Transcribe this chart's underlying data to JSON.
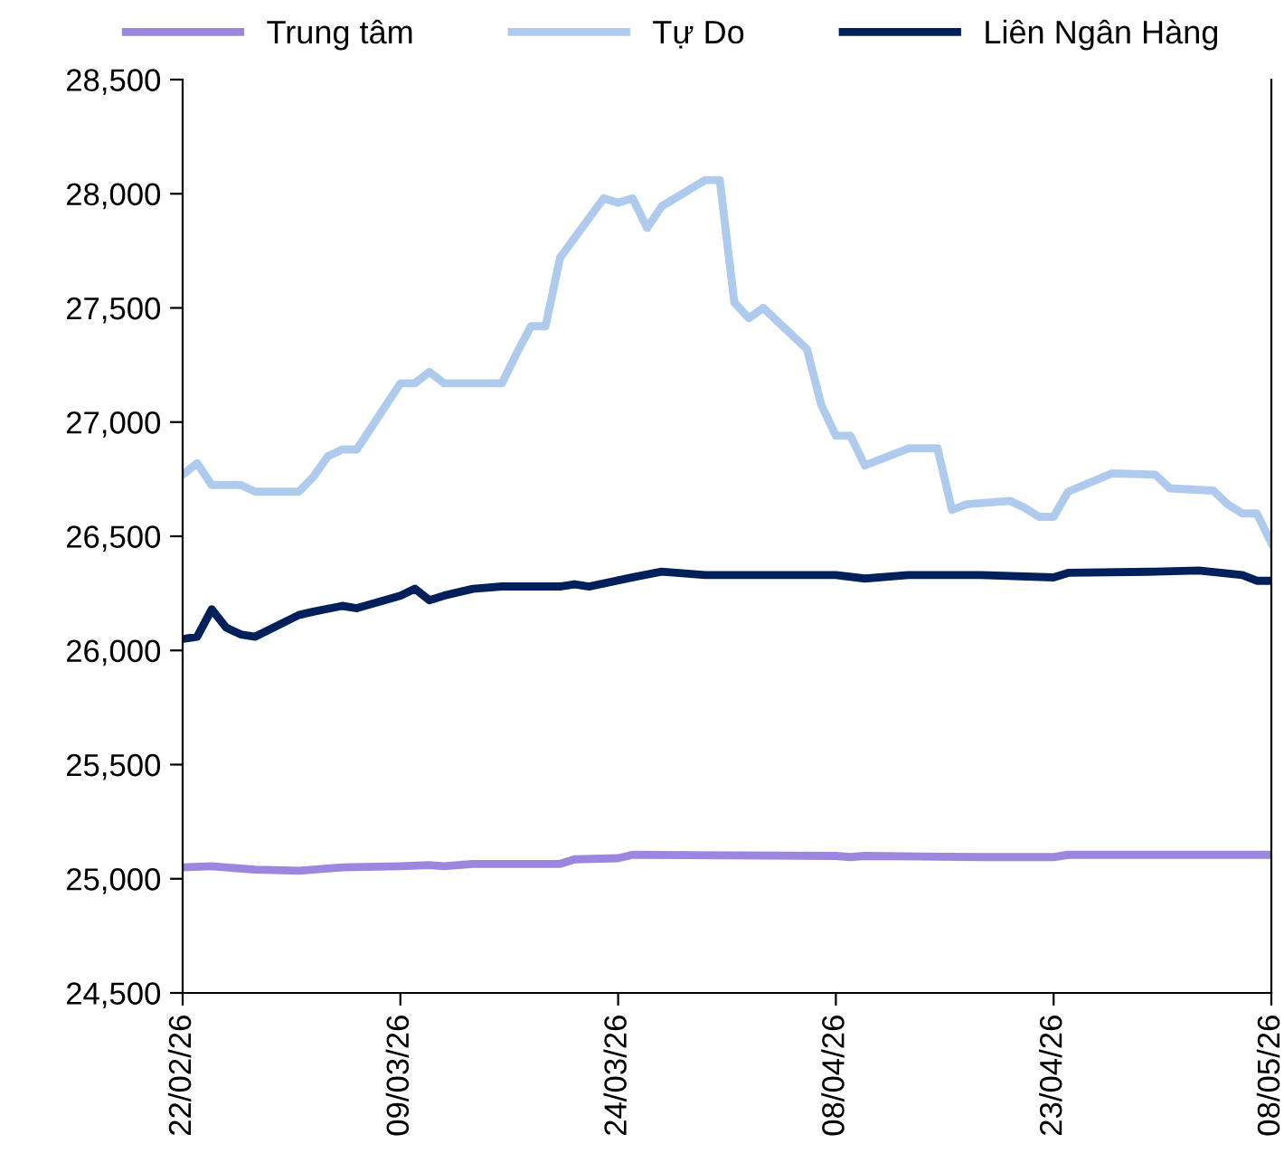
{
  "chart_data": {
    "type": "line",
    "legend": "top",
    "grid": false,
    "marker": "none",
    "line_style": "solid",
    "ylim": [
      24500,
      28500
    ],
    "yticks": [
      {
        "value": 24500,
        "label": "24,500"
      },
      {
        "value": 25000,
        "label": "25,000"
      },
      {
        "value": 25500,
        "label": "25,500"
      },
      {
        "value": 26000,
        "label": "26,000"
      },
      {
        "value": 26500,
        "label": "26,500"
      },
      {
        "value": 27000,
        "label": "27,000"
      },
      {
        "value": 27500,
        "label": "27,500"
      },
      {
        "value": 28000,
        "label": "28,000"
      },
      {
        "value": 28500,
        "label": "28,500"
      }
    ],
    "xlim": [
      "2026-02-22",
      "2026-05-08"
    ],
    "xticks": [
      {
        "value": "2026-02-22",
        "label": "22/02/26"
      },
      {
        "value": "2026-03-09",
        "label": "09/03/26"
      },
      {
        "value": "2026-03-24",
        "label": "24/03/26"
      },
      {
        "value": "2026-04-08",
        "label": "08/04/26"
      },
      {
        "value": "2026-04-23",
        "label": "23/04/26"
      },
      {
        "value": "2026-05-08",
        "label": "08/05/26"
      }
    ],
    "series": [
      {
        "name": "Trung tâm",
        "color": "#9b87e0",
        "x": [
          "2026-02-22",
          "2026-02-24",
          "2026-02-27",
          "2026-03-02",
          "2026-03-05",
          "2026-03-09",
          "2026-03-11",
          "2026-03-12",
          "2026-03-14",
          "2026-03-20",
          "2026-03-21",
          "2026-03-24",
          "2026-03-25",
          "2026-04-08",
          "2026-04-09",
          "2026-04-10",
          "2026-04-18",
          "2026-04-23",
          "2026-04-24",
          "2026-05-08"
        ],
        "values": [
          25050,
          25055,
          25040,
          25035,
          25050,
          25055,
          25060,
          25055,
          25065,
          25065,
          25085,
          25090,
          25105,
          25100,
          25095,
          25100,
          25095,
          25095,
          25105,
          25105
        ]
      },
      {
        "name": "Tự Do",
        "color": "#aecbed",
        "x": [
          "2026-02-22",
          "2026-02-23",
          "2026-02-24",
          "2026-02-26",
          "2026-02-27",
          "2026-03-02",
          "2026-03-03",
          "2026-03-04",
          "2026-03-05",
          "2026-03-06",
          "2026-03-09",
          "2026-03-10",
          "2026-03-11",
          "2026-03-12",
          "2026-03-16",
          "2026-03-17",
          "2026-03-18",
          "2026-03-19",
          "2026-03-20",
          "2026-03-23",
          "2026-03-24",
          "2026-03-25",
          "2026-03-26",
          "2026-03-27",
          "2026-03-30",
          "2026-03-31",
          "2026-04-01",
          "2026-04-02",
          "2026-04-03",
          "2026-04-06",
          "2026-04-07",
          "2026-04-08",
          "2026-04-09",
          "2026-04-10",
          "2026-04-13",
          "2026-04-15",
          "2026-04-16",
          "2026-04-17",
          "2026-04-20",
          "2026-04-21",
          "2026-04-22",
          "2026-04-23",
          "2026-04-24",
          "2026-04-27",
          "2026-04-30",
          "2026-05-01",
          "2026-05-04",
          "2026-05-05",
          "2026-05-06",
          "2026-05-07",
          "2026-05-08"
        ],
        "values": [
          26770,
          26820,
          26725,
          26725,
          26695,
          26695,
          26760,
          26850,
          26880,
          26880,
          27170,
          27170,
          27220,
          27170,
          27170,
          27300,
          27420,
          27420,
          27720,
          27980,
          27960,
          27980,
          27850,
          27945,
          28060,
          28060,
          27525,
          27455,
          27500,
          27320,
          27075,
          26940,
          26940,
          26810,
          26885,
          26885,
          26615,
          26640,
          26655,
          26625,
          26585,
          26585,
          26695,
          26775,
          26770,
          26710,
          26700,
          26640,
          26600,
          26600,
          26470
        ]
      },
      {
        "name": "Liên Ngân Hàng",
        "color": "#00205b",
        "x": [
          "2026-02-22",
          "2026-02-23",
          "2026-02-24",
          "2026-02-25",
          "2026-02-26",
          "2026-02-27",
          "2026-03-02",
          "2026-03-03",
          "2026-03-05",
          "2026-03-06",
          "2026-03-09",
          "2026-03-10",
          "2026-03-11",
          "2026-03-12",
          "2026-03-14",
          "2026-03-16",
          "2026-03-20",
          "2026-03-21",
          "2026-03-22",
          "2026-03-25",
          "2026-03-27",
          "2026-03-29",
          "2026-03-30",
          "2026-04-03",
          "2026-04-08",
          "2026-04-10",
          "2026-04-13",
          "2026-04-18",
          "2026-04-23",
          "2026-04-24",
          "2026-04-30",
          "2026-05-03",
          "2026-05-06",
          "2026-05-07",
          "2026-05-08"
        ],
        "values": [
          26050,
          26060,
          26180,
          26100,
          26070,
          26060,
          26155,
          26170,
          26195,
          26185,
          26240,
          26270,
          26220,
          26240,
          26270,
          26280,
          26280,
          26290,
          26280,
          26320,
          26345,
          26335,
          26330,
          26330,
          26330,
          26315,
          26330,
          26330,
          26320,
          26340,
          26345,
          26350,
          26330,
          26305,
          26305
        ]
      }
    ]
  }
}
